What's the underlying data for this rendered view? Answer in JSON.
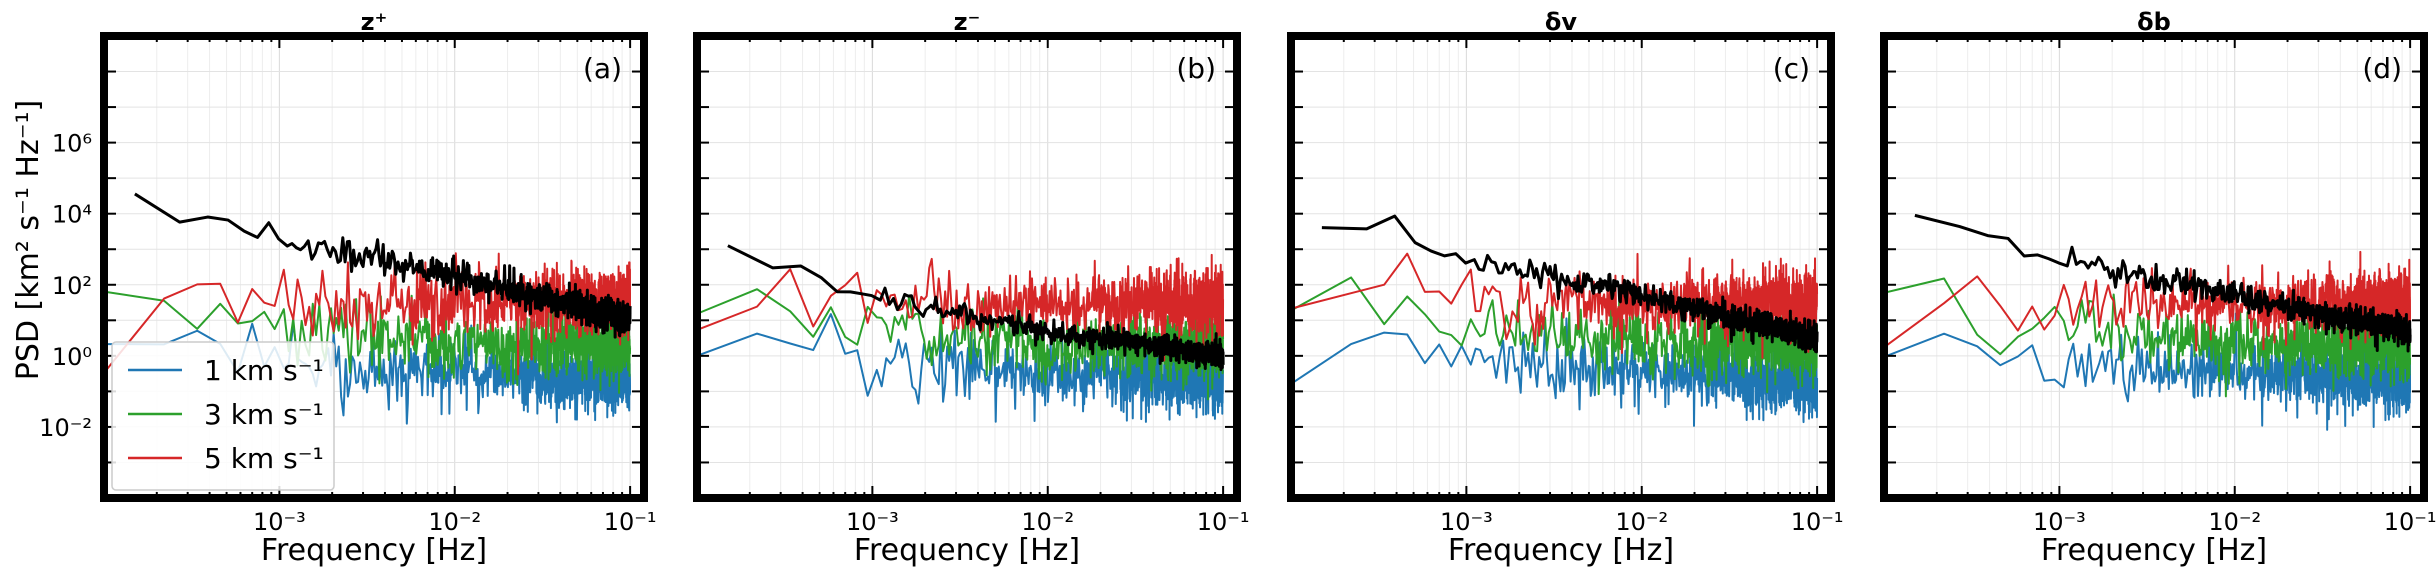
{
  "figure": {
    "ylabel": "PSD [km² s⁻¹ Hz⁻¹]",
    "xlabel": "Frequency [Hz]",
    "legend": {
      "placement": "lower-left",
      "panel": 0,
      "entries": [
        {
          "label": "1 km s⁻¹",
          "color": "#1f77b4"
        },
        {
          "label": "3 km s⁻¹",
          "color": "#2ca02c"
        },
        {
          "label": "5 km s⁻¹",
          "color": "#d62728"
        }
      ]
    }
  },
  "chart_data": [
    {
      "type": "line",
      "title": "z⁺",
      "panel_label": "(a)",
      "xscale": "log",
      "yscale": "log",
      "xlim": [
        0.0001,
        0.12
      ],
      "ylim": [
        0.0001,
        1000000000
      ],
      "xticks": [
        {
          "value": 0.001,
          "label": "10⁻³"
        },
        {
          "value": 0.01,
          "label": "10⁻²"
        },
        {
          "value": 0.1,
          "label": "10⁻¹"
        }
      ],
      "yticks": [
        {
          "value": 0.01,
          "label": "10⁻²"
        },
        {
          "value": 1,
          "label": "10⁰"
        },
        {
          "value": 100,
          "label": "10²"
        },
        {
          "value": 10000,
          "label": "10⁴"
        },
        {
          "value": 1000000,
          "label": "10⁶"
        }
      ],
      "grid": true,
      "series": [
        {
          "name": "1 km s⁻¹",
          "color": "#1f77b4",
          "approx": {
            "points": [
              [
                0.0001,
                2
              ],
              [
                0.0003,
                3
              ],
              [
                0.001,
                1
              ],
              [
                0.01,
                0.5
              ],
              [
                0.1,
                0.3
              ]
            ],
            "scatter_decades": 0.8
          }
        },
        {
          "name": "3 km s⁻¹",
          "color": "#2ca02c",
          "approx": {
            "points": [
              [
                0.0001,
                50
              ],
              [
                0.0003,
                30
              ],
              [
                0.001,
                10
              ],
              [
                0.01,
                3
              ],
              [
                0.1,
                3
              ]
            ],
            "scatter_decades": 0.8
          }
        },
        {
          "name": "5 km s⁻¹",
          "color": "#d62728",
          "approx": {
            "points": [
              [
                0.0001,
                5
              ],
              [
                0.0003,
                70
              ],
              [
                0.001,
                40
              ],
              [
                0.01,
                40
              ],
              [
                0.1,
                50
              ]
            ],
            "scatter_decades": 0.8
          }
        },
        {
          "name": "",
          "color": "#000000",
          "approx": {
            "points": [
              [
                0.00015,
                30000
              ],
              [
                0.0003,
                10000
              ],
              [
                0.001,
                2000
              ],
              [
                0.01,
                200
              ],
              [
                0.1,
                10
              ]
            ],
            "scatter_decades": 0.45
          }
        }
      ]
    },
    {
      "type": "line",
      "title": "z⁻",
      "panel_label": "(b)",
      "xscale": "log",
      "yscale": "log",
      "xlim": [
        0.0001,
        0.12
      ],
      "ylim": [
        0.0001,
        1000000000
      ],
      "xticks": [
        {
          "value": 0.001,
          "label": "10⁻³"
        },
        {
          "value": 0.01,
          "label": "10⁻²"
        },
        {
          "value": 0.1,
          "label": "10⁻¹"
        }
      ],
      "grid": true,
      "series": [
        {
          "name": "1 km s⁻¹",
          "color": "#1f77b4",
          "approx": {
            "points": [
              [
                0.0001,
                2
              ],
              [
                0.0003,
                3
              ],
              [
                0.001,
                1
              ],
              [
                0.01,
                0.5
              ],
              [
                0.1,
                0.3
              ]
            ],
            "scatter_decades": 0.8
          }
        },
        {
          "name": "3 km s⁻¹",
          "color": "#2ca02c",
          "approx": {
            "points": [
              [
                0.0001,
                50
              ],
              [
                0.0003,
                30
              ],
              [
                0.001,
                10
              ],
              [
                0.01,
                3
              ],
              [
                0.1,
                3
              ]
            ],
            "scatter_decades": 0.8
          }
        },
        {
          "name": "5 km s⁻¹",
          "color": "#d62728",
          "approx": {
            "points": [
              [
                0.0001,
                5
              ],
              [
                0.0003,
                70
              ],
              [
                0.001,
                40
              ],
              [
                0.01,
                40
              ],
              [
                0.1,
                50
              ]
            ],
            "scatter_decades": 0.8
          }
        },
        {
          "name": "",
          "color": "#000000",
          "approx": {
            "points": [
              [
                0.00015,
                1000
              ],
              [
                0.0003,
                300
              ],
              [
                0.001,
                50
              ],
              [
                0.01,
                5
              ],
              [
                0.1,
                1
              ]
            ],
            "scatter_decades": 0.35
          }
        }
      ]
    },
    {
      "type": "line",
      "title": "δv",
      "panel_label": "(c)",
      "xscale": "log",
      "yscale": "log",
      "xlim": [
        0.0001,
        0.12
      ],
      "ylim": [
        0.0001,
        1000000000
      ],
      "xticks": [
        {
          "value": 0.001,
          "label": "10⁻³"
        },
        {
          "value": 0.01,
          "label": "10⁻²"
        },
        {
          "value": 0.1,
          "label": "10⁻¹"
        }
      ],
      "grid": true,
      "series": [
        {
          "name": "1 km s⁻¹",
          "color": "#1f77b4",
          "approx": {
            "points": [
              [
                0.0001,
                2
              ],
              [
                0.0003,
                3
              ],
              [
                0.001,
                1
              ],
              [
                0.01,
                0.5
              ],
              [
                0.1,
                0.3
              ]
            ],
            "scatter_decades": 0.8
          }
        },
        {
          "name": "3 km s⁻¹",
          "color": "#2ca02c",
          "approx": {
            "points": [
              [
                0.0001,
                50
              ],
              [
                0.0003,
                30
              ],
              [
                0.001,
                10
              ],
              [
                0.01,
                3
              ],
              [
                0.1,
                3
              ]
            ],
            "scatter_decades": 0.8
          }
        },
        {
          "name": "5 km s⁻¹",
          "color": "#d62728",
          "approx": {
            "points": [
              [
                0.0001,
                5
              ],
              [
                0.0003,
                70
              ],
              [
                0.001,
                40
              ],
              [
                0.01,
                40
              ],
              [
                0.1,
                50
              ]
            ],
            "scatter_decades": 0.8
          }
        },
        {
          "name": "",
          "color": "#000000",
          "approx": {
            "points": [
              [
                0.00015,
                5000
              ],
              [
                0.0003,
                3000
              ],
              [
                0.001,
                500
              ],
              [
                0.01,
                50
              ],
              [
                0.1,
                3
              ]
            ],
            "scatter_decades": 0.4
          }
        }
      ]
    },
    {
      "type": "line",
      "title": "δb",
      "panel_label": "(d)",
      "xscale": "log",
      "yscale": "log",
      "xlim": [
        0.0001,
        0.12
      ],
      "ylim": [
        0.0001,
        1000000000
      ],
      "xticks": [
        {
          "value": 0.001,
          "label": "10⁻³"
        },
        {
          "value": 0.01,
          "label": "10⁻²"
        },
        {
          "value": 0.1,
          "label": "10⁻¹"
        }
      ],
      "grid": true,
      "series": [
        {
          "name": "1 km s⁻¹",
          "color": "#1f77b4",
          "approx": {
            "points": [
              [
                0.0001,
                2
              ],
              [
                0.0003,
                3
              ],
              [
                0.001,
                1
              ],
              [
                0.01,
                0.5
              ],
              [
                0.1,
                0.3
              ]
            ],
            "scatter_decades": 0.8
          }
        },
        {
          "name": "3 km s⁻¹",
          "color": "#2ca02c",
          "approx": {
            "points": [
              [
                0.0001,
                50
              ],
              [
                0.0003,
                30
              ],
              [
                0.001,
                10
              ],
              [
                0.01,
                3
              ],
              [
                0.1,
                3
              ]
            ],
            "scatter_decades": 0.8
          }
        },
        {
          "name": "5 km s⁻¹",
          "color": "#d62728",
          "approx": {
            "points": [
              [
                0.0001,
                5
              ],
              [
                0.0003,
                70
              ],
              [
                0.001,
                40
              ],
              [
                0.01,
                40
              ],
              [
                0.1,
                50
              ]
            ],
            "scatter_decades": 0.8
          }
        },
        {
          "name": "",
          "color": "#000000",
          "approx": {
            "points": [
              [
                0.00015,
                10000
              ],
              [
                0.0003,
                3000
              ],
              [
                0.001,
                500
              ],
              [
                0.01,
                50
              ],
              [
                0.1,
                5
              ]
            ],
            "scatter_decades": 0.4
          }
        }
      ]
    }
  ]
}
